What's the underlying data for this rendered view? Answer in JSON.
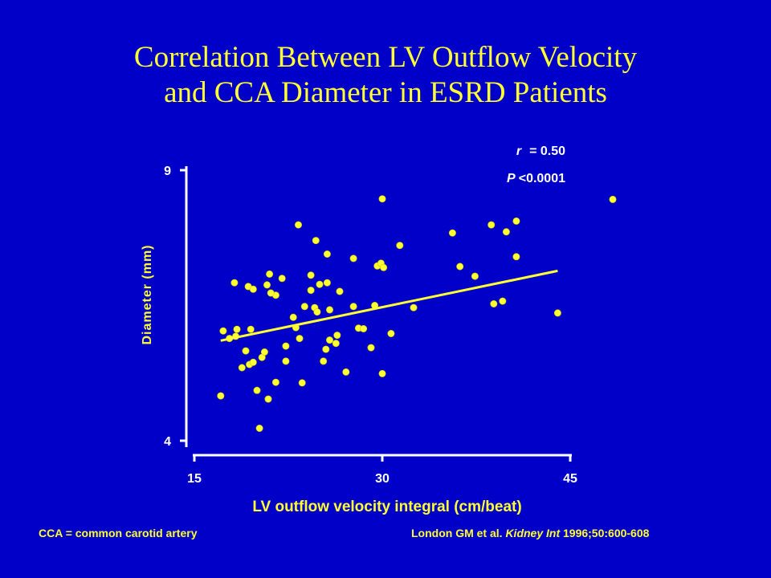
{
  "title": {
    "line1": "Correlation Between LV Outflow Velocity",
    "line2": "and CCA Diameter in ESRD Patients"
  },
  "colors": {
    "background": "#0000c8",
    "accent": "#ffff33",
    "axis": "#ffffff"
  },
  "stats": {
    "r_symbol": "r",
    "r_eq": "= 0.50",
    "p_symbol": "P",
    "p_value": "<0.0001"
  },
  "footer": {
    "abbreviation": "CCA = common carotid artery",
    "citation_authors": "London GM et al. ",
    "citation_journal": "Kidney Int",
    "citation_rest": " 1996;50:600-608"
  },
  "chart_data": {
    "type": "scatter",
    "xlabel": "LV outflow velocity integral (cm/beat)",
    "ylabel": "Diameter (mm)",
    "xlim": [
      15,
      45
    ],
    "ylim": [
      4,
      9
    ],
    "x_ticks": [
      15,
      30,
      45
    ],
    "y_ticks": [
      4,
      9
    ],
    "grid": false,
    "legend": "none",
    "regression_line": {
      "x": [
        17.1,
        44.0
      ],
      "y": [
        5.85,
        7.14
      ]
    },
    "points": [
      [
        17.1,
        4.83
      ],
      [
        17.3,
        6.03
      ],
      [
        17.8,
        5.89
      ],
      [
        18.3,
        5.93
      ],
      [
        18.4,
        6.06
      ],
      [
        18.2,
        6.92
      ],
      [
        18.8,
        5.35
      ],
      [
        19.1,
        5.66
      ],
      [
        19.4,
        5.41
      ],
      [
        19.5,
        6.06
      ],
      [
        19.3,
        6.85
      ],
      [
        19.7,
        6.8
      ],
      [
        19.7,
        5.45
      ],
      [
        20.0,
        4.93
      ],
      [
        20.2,
        4.23
      ],
      [
        20.4,
        5.54
      ],
      [
        20.6,
        5.64
      ],
      [
        20.8,
        6.88
      ],
      [
        20.9,
        4.77
      ],
      [
        21.0,
        7.08
      ],
      [
        21.5,
        6.69
      ],
      [
        21.1,
        6.73
      ],
      [
        21.5,
        5.08
      ],
      [
        22.0,
        7.0
      ],
      [
        22.3,
        5.75
      ],
      [
        22.3,
        5.47
      ],
      [
        22.9,
        6.28
      ],
      [
        23.1,
        6.09
      ],
      [
        23.3,
        7.99
      ],
      [
        23.4,
        5.89
      ],
      [
        23.6,
        5.07
      ],
      [
        23.8,
        6.48
      ],
      [
        24.3,
        6.78
      ],
      [
        24.3,
        7.06
      ],
      [
        24.6,
        6.46
      ],
      [
        24.8,
        6.38
      ],
      [
        24.7,
        7.7
      ],
      [
        25.0,
        6.89
      ],
      [
        25.3,
        5.47
      ],
      [
        25.5,
        5.69
      ],
      [
        25.6,
        6.92
      ],
      [
        25.8,
        5.86
      ],
      [
        25.6,
        7.45
      ],
      [
        25.8,
        6.42
      ],
      [
        26.3,
        5.8
      ],
      [
        26.4,
        5.95
      ],
      [
        26.6,
        6.76
      ],
      [
        27.1,
        5.27
      ],
      [
        27.7,
        6.48
      ],
      [
        27.7,
        7.37
      ],
      [
        28.1,
        6.08
      ],
      [
        28.5,
        6.07
      ],
      [
        29.1,
        5.72
      ],
      [
        29.4,
        6.5
      ],
      [
        29.6,
        7.23
      ],
      [
        29.9,
        7.28
      ],
      [
        30.0,
        5.24
      ],
      [
        30.0,
        8.47
      ],
      [
        30.1,
        7.2
      ],
      [
        30.7,
        5.98
      ],
      [
        31.4,
        7.61
      ],
      [
        32.5,
        6.46
      ],
      [
        35.6,
        7.84
      ],
      [
        36.2,
        7.22
      ],
      [
        37.4,
        7.04
      ],
      [
        38.7,
        7.99
      ],
      [
        38.9,
        6.53
      ],
      [
        39.6,
        6.58
      ],
      [
        39.9,
        7.86
      ],
      [
        40.7,
        7.4
      ],
      [
        40.7,
        8.06
      ],
      [
        44.0,
        6.36
      ],
      [
        48.4,
        8.46
      ]
    ]
  }
}
